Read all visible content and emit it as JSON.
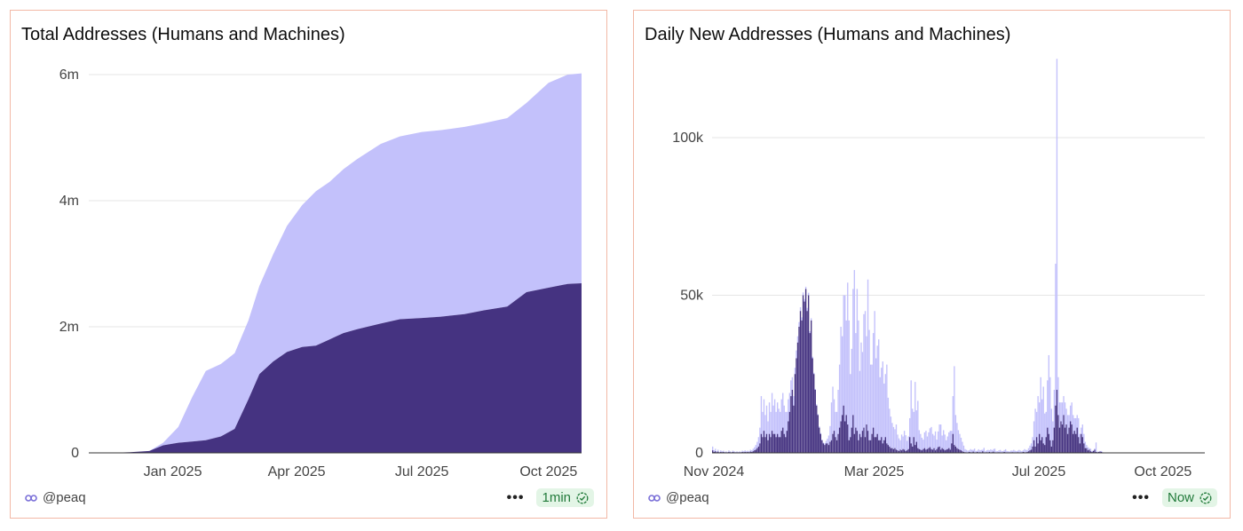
{
  "left_panel": {
    "title": "Total Addresses (Humans and Machines)",
    "footer": {
      "handle": "@peaq",
      "menu_label": "•••",
      "badge": "1min"
    }
  },
  "right_panel": {
    "title": "Daily New Addresses (Humans and Machines)",
    "footer": {
      "handle": "@peaq",
      "menu_label": "•••",
      "badge": "Now"
    }
  },
  "colors": {
    "light": "#c3c1fb",
    "dark": "#453381",
    "grid": "#e6e6e6",
    "border": "#f2b8a6",
    "badge_bg": "#e3f5e6",
    "badge_text": "#217a3a"
  },
  "chart_data": [
    {
      "type": "area",
      "stacked": true,
      "title": "Total Addresses (Humans and Machines)",
      "x_ticks": [
        "Jan 2025",
        "Apr 2025",
        "Jul 2025",
        "Oct 2025"
      ],
      "y_ticks": [
        "0",
        "2m",
        "4m",
        "6m"
      ],
      "ylim": [
        0,
        6000000
      ],
      "grid": true,
      "x": [
        "2024-11-15",
        "2024-12-01",
        "2024-12-15",
        "2024-12-25",
        "2025-01-05",
        "2025-01-15",
        "2025-01-25",
        "2025-02-05",
        "2025-02-15",
        "2025-02-25",
        "2025-03-05",
        "2025-03-15",
        "2025-03-25",
        "2025-04-05",
        "2025-04-15",
        "2025-04-25",
        "2025-05-05",
        "2025-05-15",
        "2025-06-01",
        "2025-06-15",
        "2025-07-01",
        "2025-07-15",
        "2025-08-01",
        "2025-08-15",
        "2025-09-01",
        "2025-09-15",
        "2025-10-01",
        "2025-10-15",
        "2025-10-25"
      ],
      "series": [
        {
          "values": [
            0,
            10000,
            30000,
            120000,
            160000,
            180000,
            200000,
            260000,
            380000,
            850000,
            1250000,
            1450000,
            1600000,
            1680000,
            1700000,
            1800000,
            1900000,
            1960000,
            2050000,
            2120000,
            2140000,
            2160000,
            2200000,
            2260000,
            2320000,
            2550000,
            2620000,
            2680000,
            2690000
          ]
        },
        {
          "values": [
            0,
            0,
            0,
            40000,
            250000,
            700000,
            1100000,
            1150000,
            1200000,
            1250000,
            1400000,
            1700000,
            2000000,
            2250000,
            2450000,
            2500000,
            2600000,
            2700000,
            2850000,
            2900000,
            2950000,
            2960000,
            2970000,
            2970000,
            2990000,
            3000000,
            3250000,
            3320000,
            3330000
          ]
        }
      ]
    },
    {
      "type": "bar",
      "stacked": true,
      "title": "Daily New Addresses (Humans and Machines)",
      "x_ticks": [
        "Nov 2024",
        "Mar 2025",
        "Jul 2025",
        "Oct 2025"
      ],
      "y_ticks": [
        "0",
        "50k",
        "100k"
      ],
      "ylim": [
        0,
        120000
      ],
      "grid": true,
      "date_range": [
        "2024-11-01",
        "2025-10-31"
      ],
      "series": [
        {
          "values": [
            1200,
            500,
            800,
            300,
            600,
            200,
            500,
            300,
            400,
            200,
            300,
            200,
            500,
            300,
            200,
            400,
            300,
            200,
            300,
            200,
            300,
            200,
            400,
            300,
            500,
            300,
            400,
            300,
            600,
            500,
            800,
            1000,
            1500,
            2000,
            3000,
            5000,
            12000,
            8000,
            10000,
            7000,
            9000,
            6000,
            10000,
            8000,
            12000,
            9000,
            11000,
            8000,
            10000,
            9000,
            8000,
            10000,
            11000,
            9000,
            8000,
            6000,
            7000,
            6000,
            5000,
            4000,
            3000,
            2000,
            2500,
            2000,
            1500,
            1200,
            1000,
            900,
            800,
            700,
            1000,
            800,
            600,
            700,
            500,
            400,
            300,
            400,
            300,
            400,
            300,
            200,
            300,
            500,
            800,
            1500,
            3000,
            5000,
            12000,
            15000,
            10000,
            8000,
            9000,
            14000,
            20000,
            30000,
            25000,
            35000,
            40000,
            30000,
            45000,
            38000,
            20000,
            25000,
            40000,
            52000,
            30000,
            45000,
            38000,
            20000,
            30000,
            25000,
            36000,
            40000,
            28000,
            48000,
            35000,
            24000,
            22000,
            30000,
            40000,
            25000,
            28000,
            32000,
            20000,
            22000,
            26000,
            18000,
            20000,
            25000,
            15000,
            12000,
            10000,
            8000,
            7000,
            6000,
            8000,
            5000,
            4000,
            3000,
            5000,
            4000,
            6000,
            5000,
            3000,
            4000,
            6000,
            20000,
            12000,
            8000,
            20000,
            10000,
            15000,
            6000,
            5000,
            4000,
            3000,
            5000,
            6000,
            4000,
            5000,
            6000,
            7000,
            5000,
            4000,
            6000,
            3000,
            5000,
            7000,
            8000,
            4000,
            6000,
            5000,
            3000,
            4000,
            5000,
            6000,
            4000,
            12000,
            25000,
            10000,
            8000,
            6000,
            5000,
            4000,
            3000,
            2000,
            1000,
            800,
            600,
            500,
            1000,
            800,
            600,
            1200,
            500,
            400,
            1000,
            600,
            800,
            500,
            1500,
            400,
            600,
            800,
            500,
            1000,
            600,
            800,
            1200,
            500,
            400,
            600,
            800,
            500,
            400,
            600,
            1000,
            500,
            400,
            300,
            600,
            500,
            800,
            600,
            400,
            500,
            800,
            600,
            400,
            500,
            1000,
            800,
            600,
            1000,
            1500,
            2000,
            3000,
            6000,
            12000,
            8000,
            15000,
            10000,
            20000,
            12000,
            18000,
            10000,
            8000,
            15000,
            25000,
            20000,
            12000,
            6000,
            12000,
            45000,
            105000,
            12000,
            8000,
            6000,
            7000,
            6000,
            8000,
            5000,
            6000,
            4000,
            5000,
            7000,
            6000,
            4000,
            5000,
            4000,
            6000,
            3000,
            2000,
            4000,
            3000,
            2000,
            1000,
            1000,
            500,
            800,
            300,
            200,
            400,
            3000,
            200,
            100,
            200,
            300,
            200
          ]
        },
        {
          "values": [
            800,
            300,
            500,
            200,
            400,
            100,
            300,
            200,
            300,
            100,
            200,
            100,
            300,
            200,
            100,
            300,
            200,
            100,
            200,
            100,
            200,
            100,
            300,
            200,
            300,
            200,
            300,
            200,
            400,
            300,
            500,
            800,
            1000,
            1500,
            2000,
            3000,
            6000,
            5000,
            7000,
            5000,
            6000,
            4000,
            6000,
            5000,
            7000,
            6000,
            6000,
            5000,
            6000,
            5000,
            5000,
            7000,
            8000,
            6000,
            5000,
            7000,
            10000,
            13000,
            18000,
            20000,
            15000,
            25000,
            30000,
            35000,
            40000,
            45000,
            42000,
            50000,
            48000,
            52000,
            45000,
            50000,
            38000,
            42000,
            30000,
            25000,
            20000,
            15000,
            12000,
            8000,
            6000,
            4000,
            3000,
            2500,
            3000,
            3000,
            2500,
            3500,
            4000,
            6000,
            7000,
            5000,
            4000,
            6000,
            8000,
            10000,
            12000,
            15000,
            10000,
            12000,
            9000,
            4000,
            5000,
            8000,
            12000,
            6000,
            8000,
            7000,
            4000,
            6000,
            5000,
            7000,
            8000,
            5000,
            9000,
            7000,
            4000,
            4000,
            6000,
            8000,
            5000,
            5000,
            6000,
            4000,
            4000,
            5000,
            3000,
            4000,
            5000,
            3000,
            2500,
            2000,
            1500,
            1500,
            1200,
            1500,
            1000,
            800,
            600,
            1000,
            800,
            1200,
            1000,
            600,
            800,
            1200,
            5000,
            3000,
            2000,
            5000,
            2500,
            3500,
            1500,
            1200,
            1000,
            800,
            1200,
            1500,
            1000,
            1200,
            1500,
            1800,
            1200,
            1000,
            1500,
            800,
            1200,
            1800,
            2000,
            1000,
            1500,
            1200,
            800,
            1000,
            1200,
            1500,
            1000,
            3000,
            6000,
            2500,
            2000,
            1500,
            1200,
            1000,
            800,
            500,
            300,
            200,
            150,
            100,
            300,
            200,
            150,
            400,
            150,
            100,
            300,
            150,
            200,
            150,
            500,
            100,
            150,
            200,
            150,
            300,
            150,
            200,
            400,
            150,
            100,
            150,
            200,
            150,
            100,
            150,
            300,
            150,
            100,
            100,
            150,
            150,
            200,
            150,
            100,
            150,
            200,
            150,
            100,
            150,
            300,
            200,
            150,
            300,
            500,
            800,
            1000,
            2000,
            4000,
            2000,
            5000,
            3000,
            6000,
            4000,
            5000,
            3000,
            2500,
            5000,
            8000,
            6000,
            4000,
            2000,
            4000,
            8000,
            15000,
            20000,
            12000,
            8000,
            10000,
            9000,
            12000,
            8000,
            9000,
            6000,
            8000,
            10000,
            9000,
            6000,
            7000,
            6000,
            8000,
            5000,
            3000,
            6000,
            5000,
            3000,
            1500,
            1500,
            800,
            1000,
            500,
            300,
            600,
            1000,
            300,
            200,
            300,
            400,
            300
          ]
        }
      ]
    }
  ]
}
